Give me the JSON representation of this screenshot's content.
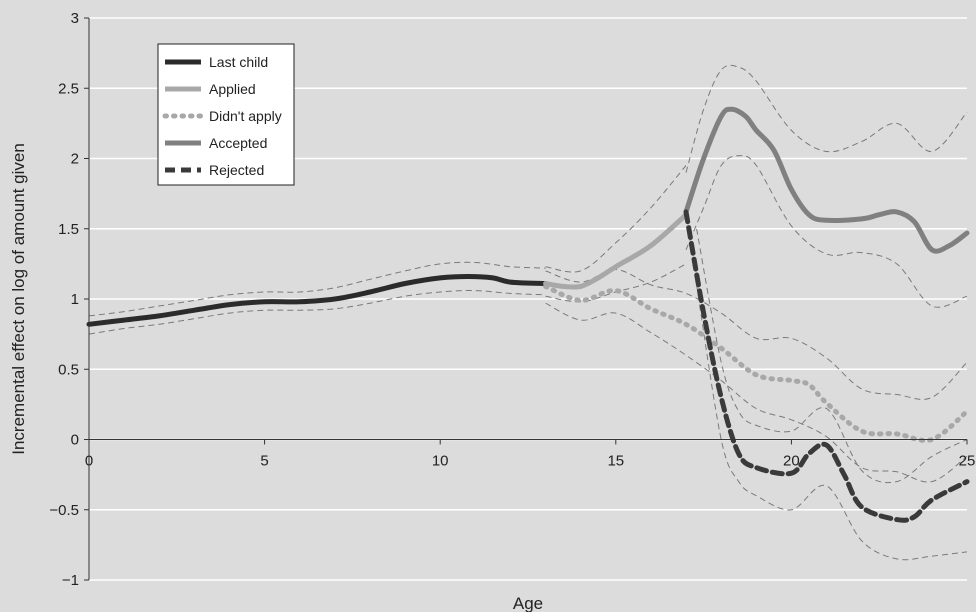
{
  "chart_data": {
    "type": "line",
    "title": "",
    "xlabel": "Age",
    "ylabel": "Incremental effect on log of amount given",
    "xlim": [
      0,
      25
    ],
    "ylim": [
      -1,
      3
    ],
    "xticks": [
      0,
      5,
      10,
      15,
      20,
      25
    ],
    "yticks": [
      -1,
      -0.5,
      0,
      0.5,
      1,
      1.5,
      2,
      2.5,
      3
    ],
    "xtick_labels": [
      "0",
      "5",
      "10",
      "15",
      "20",
      "25"
    ],
    "ytick_labels": [
      "−1",
      "−0.5",
      "0",
      "0.5",
      "1",
      "1.5",
      "2",
      "2.5",
      "3"
    ],
    "grid": "horizontal",
    "legend_position": "top-left",
    "series": [
      {
        "name": "Last child",
        "style": "solid",
        "color": "#2b2b2b",
        "points": [
          [
            0,
            0.82
          ],
          [
            1,
            0.85
          ],
          [
            2,
            0.88
          ],
          [
            3,
            0.92
          ],
          [
            4,
            0.96
          ],
          [
            5,
            0.98
          ],
          [
            6,
            0.98
          ],
          [
            7,
            1.0
          ],
          [
            8,
            1.05
          ],
          [
            9,
            1.11
          ],
          [
            10,
            1.15
          ],
          [
            10.8,
            1.16
          ],
          [
            11.5,
            1.15
          ],
          [
            12,
            1.12
          ],
          [
            13,
            1.11
          ]
        ],
        "lower": [
          [
            0,
            0.75
          ],
          [
            1,
            0.79
          ],
          [
            2,
            0.82
          ],
          [
            3,
            0.86
          ],
          [
            4,
            0.9
          ],
          [
            5,
            0.92
          ],
          [
            6,
            0.92
          ],
          [
            7,
            0.93
          ],
          [
            8,
            0.97
          ],
          [
            9,
            1.02
          ],
          [
            10,
            1.05
          ],
          [
            11,
            1.06
          ],
          [
            12,
            1.04
          ],
          [
            13,
            1.03
          ]
        ],
        "upper": [
          [
            0,
            0.88
          ],
          [
            1,
            0.91
          ],
          [
            2,
            0.95
          ],
          [
            3,
            0.99
          ],
          [
            4,
            1.03
          ],
          [
            5,
            1.05
          ],
          [
            6,
            1.05
          ],
          [
            7,
            1.08
          ],
          [
            8,
            1.14
          ],
          [
            9,
            1.2
          ],
          [
            10,
            1.25
          ],
          [
            11,
            1.26
          ],
          [
            12,
            1.23
          ],
          [
            13,
            1.22
          ]
        ]
      },
      {
        "name": "Applied",
        "style": "solid",
        "color": "#a8a8a8",
        "points": [
          [
            13,
            1.11
          ],
          [
            13.5,
            1.09
          ],
          [
            14,
            1.09
          ],
          [
            14.5,
            1.15
          ],
          [
            15,
            1.23
          ],
          [
            16,
            1.38
          ],
          [
            17,
            1.6
          ]
        ],
        "lower": [
          [
            13,
            1.02
          ],
          [
            14,
            0.98
          ],
          [
            15,
            1.05
          ],
          [
            16,
            1.12
          ],
          [
            17,
            1.25
          ]
        ],
        "upper": [
          [
            13,
            1.23
          ],
          [
            14,
            1.2
          ],
          [
            15,
            1.4
          ],
          [
            16,
            1.65
          ],
          [
            17,
            1.95
          ]
        ]
      },
      {
        "name": "Didn't apply",
        "style": "dotted",
        "color": "#a8a8a8",
        "points": [
          [
            13,
            1.09
          ],
          [
            14,
            0.99
          ],
          [
            15,
            1.06
          ],
          [
            16,
            0.93
          ],
          [
            17,
            0.82
          ],
          [
            18,
            0.65
          ],
          [
            19,
            0.46
          ],
          [
            20,
            0.42
          ],
          [
            20.5,
            0.39
          ],
          [
            21,
            0.26
          ],
          [
            22,
            0.06
          ],
          [
            23,
            0.04
          ],
          [
            24,
            0.0
          ],
          [
            25,
            0.2
          ]
        ],
        "lower": [
          [
            13,
            0.97
          ],
          [
            14,
            0.85
          ],
          [
            15,
            0.9
          ],
          [
            16,
            0.76
          ],
          [
            17,
            0.6
          ],
          [
            18,
            0.42
          ],
          [
            19,
            0.22
          ],
          [
            20,
            0.14
          ],
          [
            21,
            0.02
          ],
          [
            22,
            -0.2
          ],
          [
            23,
            -0.23
          ],
          [
            24,
            -0.3
          ],
          [
            25,
            -0.12
          ]
        ],
        "upper": [
          [
            13,
            1.2
          ],
          [
            14,
            1.12
          ],
          [
            15,
            1.21
          ],
          [
            16,
            1.1
          ],
          [
            17,
            1.04
          ],
          [
            18,
            0.9
          ],
          [
            19,
            0.72
          ],
          [
            20,
            0.72
          ],
          [
            21,
            0.58
          ],
          [
            22,
            0.36
          ],
          [
            23,
            0.32
          ],
          [
            24,
            0.3
          ],
          [
            25,
            0.55
          ]
        ]
      },
      {
        "name": "Accepted",
        "style": "solid",
        "color": "#808080",
        "points": [
          [
            17,
            1.62
          ],
          [
            17.5,
            2.0
          ],
          [
            18,
            2.3
          ],
          [
            18.3,
            2.35
          ],
          [
            18.7,
            2.3
          ],
          [
            19,
            2.2
          ],
          [
            19.5,
            2.06
          ],
          [
            20,
            1.78
          ],
          [
            20.5,
            1.6
          ],
          [
            21,
            1.56
          ],
          [
            22,
            1.57
          ],
          [
            22.5,
            1.6
          ],
          [
            23,
            1.62
          ],
          [
            23.5,
            1.55
          ],
          [
            24,
            1.35
          ],
          [
            24.5,
            1.38
          ],
          [
            25,
            1.47
          ]
        ],
        "lower": [
          [
            17,
            1.35
          ],
          [
            17.5,
            1.65
          ],
          [
            18,
            1.95
          ],
          [
            18.5,
            2.02
          ],
          [
            19,
            1.95
          ],
          [
            20,
            1.52
          ],
          [
            21,
            1.32
          ],
          [
            22,
            1.33
          ],
          [
            23,
            1.25
          ],
          [
            24,
            0.95
          ],
          [
            25,
            1.02
          ]
        ],
        "upper": [
          [
            17,
            1.9
          ],
          [
            17.5,
            2.35
          ],
          [
            18,
            2.63
          ],
          [
            18.5,
            2.65
          ],
          [
            19,
            2.55
          ],
          [
            20,
            2.2
          ],
          [
            21,
            2.05
          ],
          [
            22,
            2.12
          ],
          [
            23,
            2.25
          ],
          [
            24,
            2.05
          ],
          [
            25,
            2.33
          ]
        ]
      },
      {
        "name": "Rejected",
        "style": "dashed",
        "color": "#3a3a3a",
        "points": [
          [
            17,
            1.62
          ],
          [
            17.5,
            0.9
          ],
          [
            18,
            0.3
          ],
          [
            18.5,
            -0.1
          ],
          [
            19,
            -0.2
          ],
          [
            20,
            -0.24
          ],
          [
            20.5,
            -0.1
          ],
          [
            21,
            -0.04
          ],
          [
            21.5,
            -0.25
          ],
          [
            22,
            -0.48
          ],
          [
            23,
            -0.57
          ],
          [
            23.5,
            -0.55
          ],
          [
            24,
            -0.43
          ],
          [
            25,
            -0.3
          ]
        ],
        "lower": [
          [
            17.3,
            1.1
          ],
          [
            18,
            0.0
          ],
          [
            18.5,
            -0.3
          ],
          [
            19,
            -0.4
          ],
          [
            20,
            -0.5
          ],
          [
            21,
            -0.33
          ],
          [
            22,
            -0.72
          ],
          [
            23,
            -0.85
          ],
          [
            24,
            -0.83
          ],
          [
            25,
            -0.8
          ]
        ],
        "upper": [
          [
            17.3,
            1.5
          ],
          [
            18,
            0.55
          ],
          [
            18.5,
            0.2
          ],
          [
            19,
            0.1
          ],
          [
            20,
            0.06
          ],
          [
            21,
            0.22
          ],
          [
            22,
            -0.22
          ],
          [
            23,
            -0.3
          ],
          [
            24,
            -0.12
          ],
          [
            25,
            0.0
          ]
        ]
      }
    ]
  }
}
